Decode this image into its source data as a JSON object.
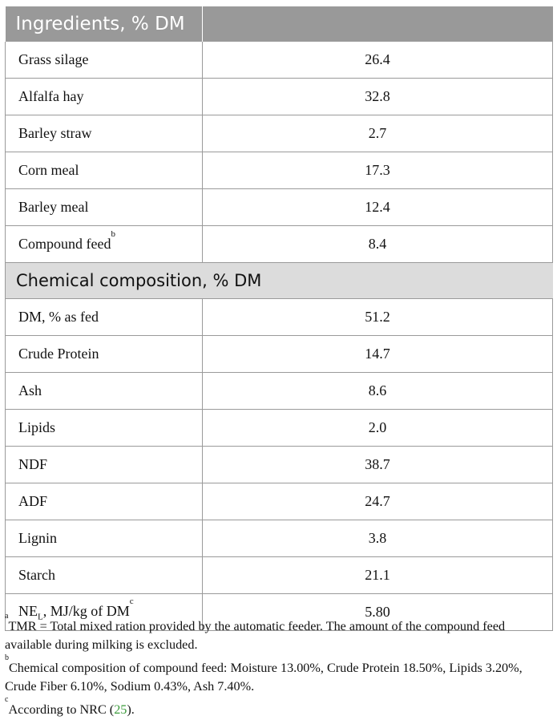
{
  "sections": [
    {
      "title": "Ingredients, % DM",
      "rows": [
        {
          "name": "Grass silage",
          "value": "26.4"
        },
        {
          "name": "Alfalfa hay",
          "value": "32.8"
        },
        {
          "name": "Barley straw",
          "value": "2.7"
        },
        {
          "name": "Corn meal",
          "value": "17.3"
        },
        {
          "name": "Barley meal",
          "value": "12.4"
        },
        {
          "name": "Compound feed",
          "sup": "b",
          "value": "8.4"
        }
      ]
    },
    {
      "title": "Chemical composition, % DM",
      "rows": [
        {
          "name": "DM, % as fed",
          "value": "51.2"
        },
        {
          "name": "Crude Protein",
          "value": "14.7"
        },
        {
          "name": "Ash",
          "value": "8.6"
        },
        {
          "name": "Lipids",
          "value": "2.0"
        },
        {
          "name": "NDF",
          "value": "38.7"
        },
        {
          "name": "ADF",
          "value": "24.7"
        },
        {
          "name": "Lignin",
          "value": "3.8"
        },
        {
          "name": "Starch",
          "value": "21.1"
        },
        {
          "name_prefix": "NE",
          "name_sub": "L",
          "name_suffix": ", MJ/kg of DM",
          "sup": "c",
          "value": "5.80"
        }
      ]
    }
  ],
  "footnotes": {
    "a_mark": "a",
    "a_text": "TMR = Total mixed ration provided by the automatic feeder. The amount of the compound feed available during milking is excluded.",
    "b_mark": "b",
    "b_text": "Chemical composition of compound feed: Moisture 13.00%, Crude Protein 18.50%, Lipids 3.20%, Crude Fiber 6.10%, Sodium 0.43%, Ash 7.40%.",
    "c_mark": "c",
    "c_text_before": "According to NRC (",
    "c_ref": "25",
    "c_text_after": ")."
  }
}
